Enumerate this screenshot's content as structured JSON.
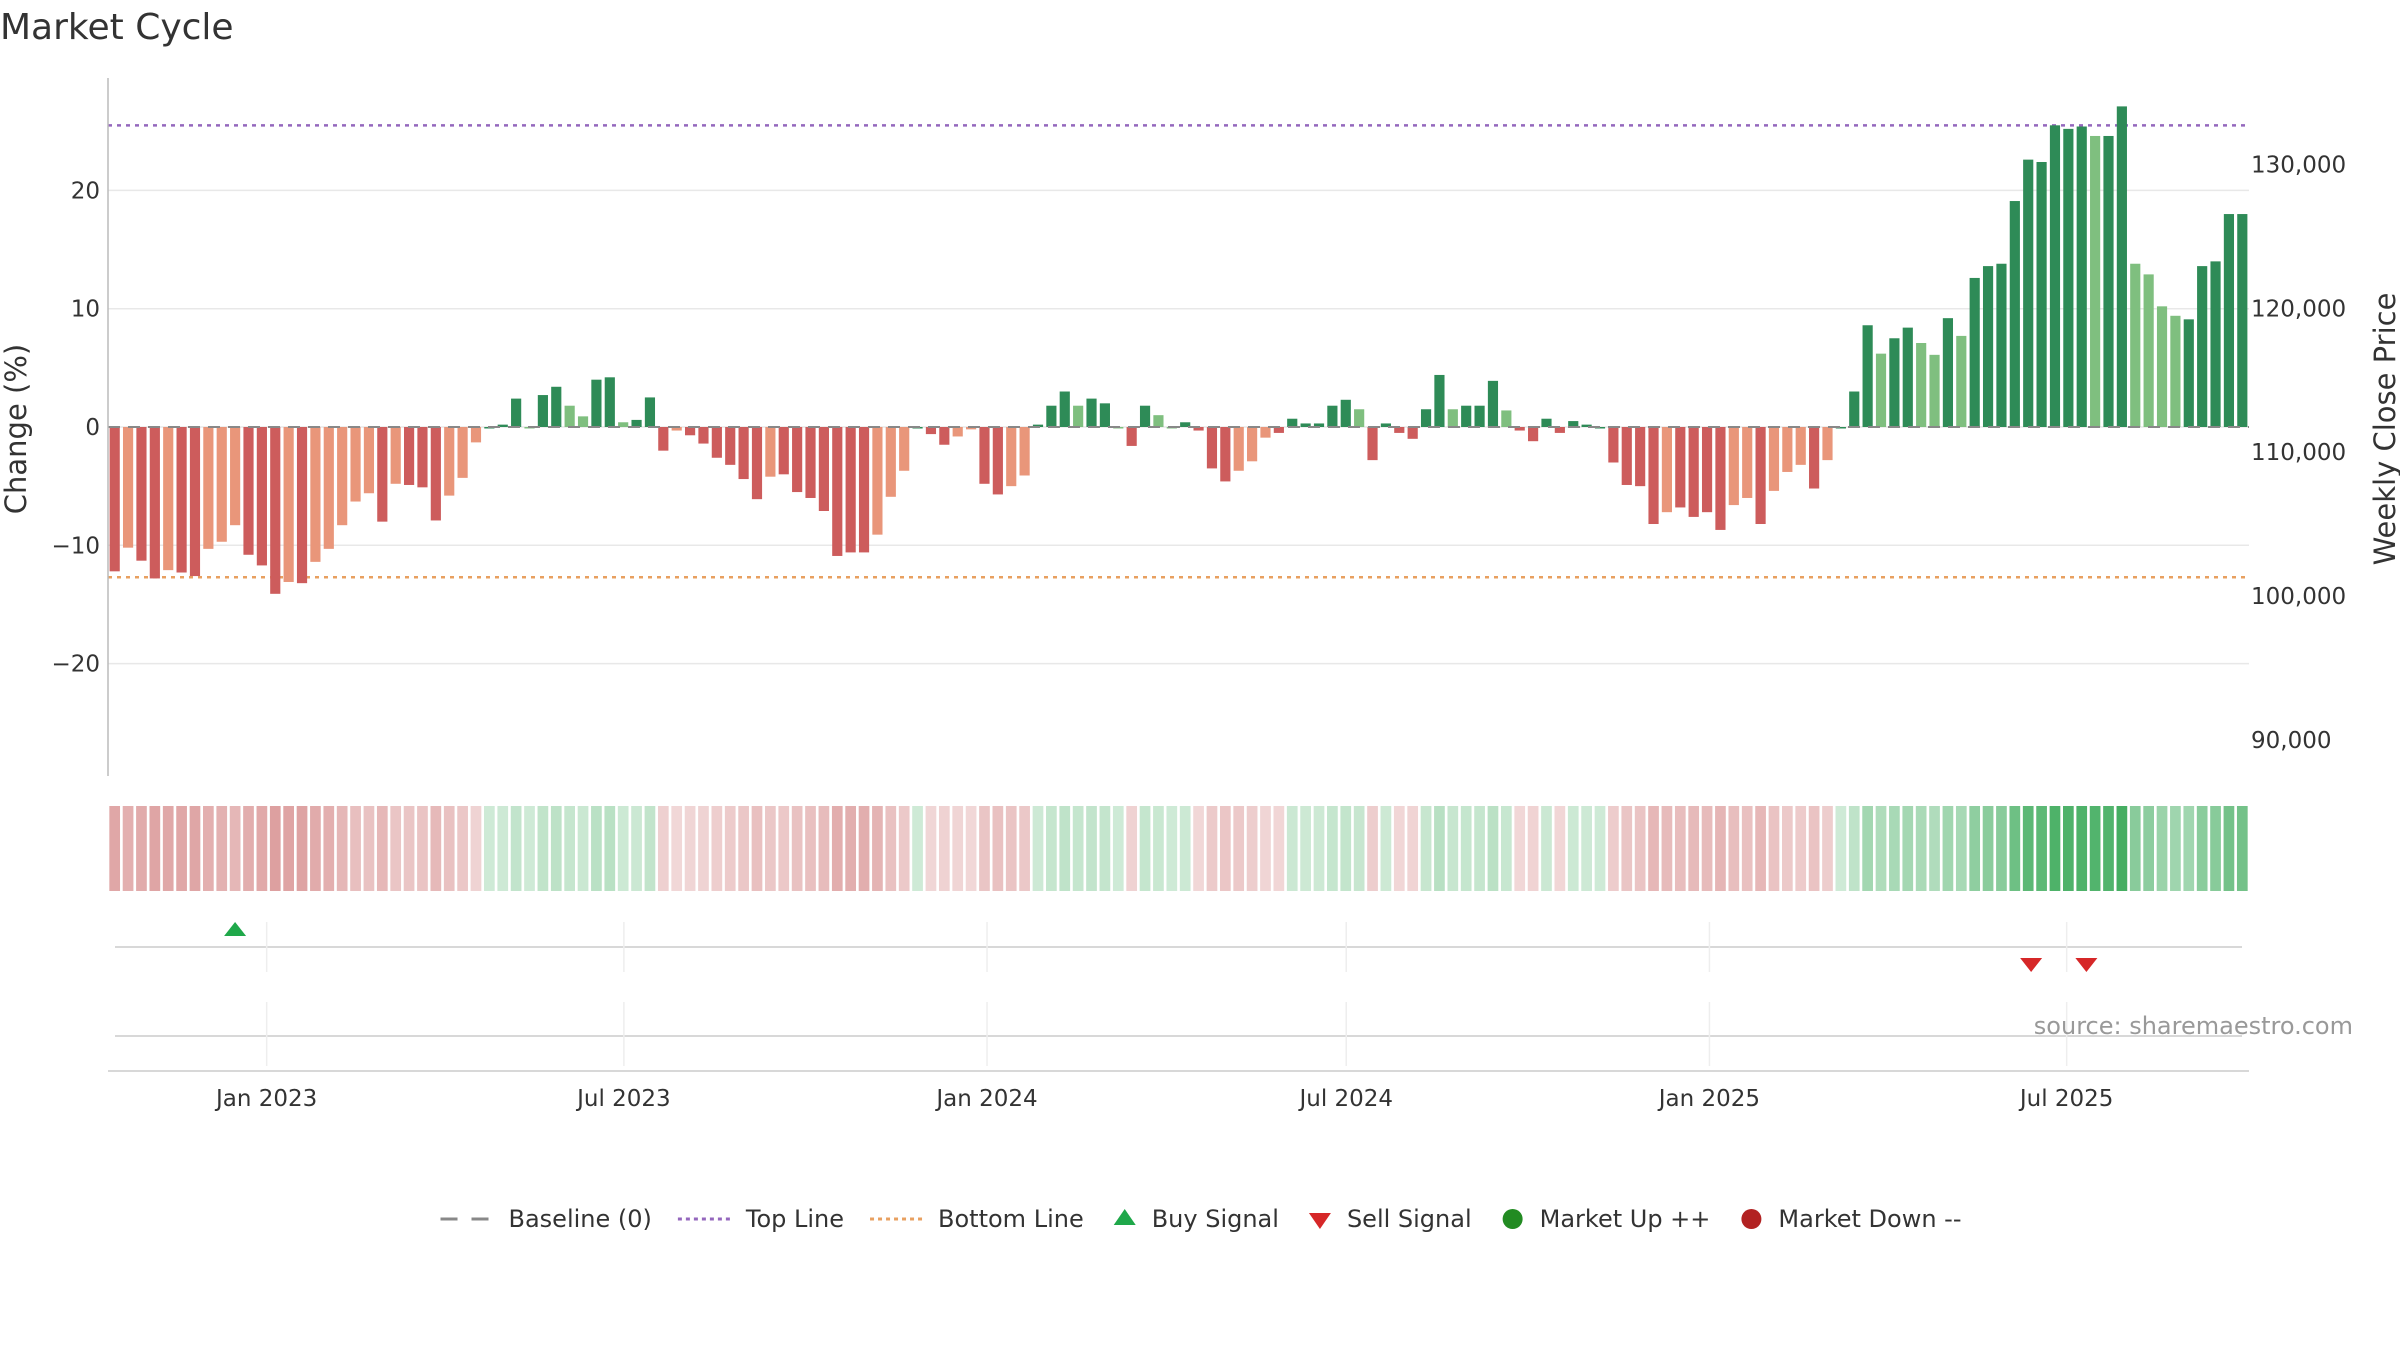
{
  "chart_data": {
    "type": "bar",
    "title": "Market Cycle",
    "ylabel": "Change (%)",
    "y2label": "Weekly Close Price",
    "ylim": [
      -29.5,
      29.5
    ],
    "y_ticks": [
      -20,
      -10,
      0,
      10,
      20
    ],
    "y2_ticks": [
      90000,
      100000,
      110000,
      120000,
      130000
    ],
    "y2_tick_labels": [
      "90,000",
      "100,000",
      "110,000",
      "120,000",
      "130,000"
    ],
    "y2lim": [
      87500,
      136000
    ],
    "top_line": 25.5,
    "bottom_line": -12.7,
    "x_ticks": [
      {
        "label": "Jan 2023",
        "date": "2023-01-01"
      },
      {
        "label": "Jul 2023",
        "date": "2023-07-01"
      },
      {
        "label": "Jan 2024",
        "date": "2024-01-01"
      },
      {
        "label": "Jul 2024",
        "date": "2024-07-01"
      },
      {
        "label": "Jan 2025",
        "date": "2025-01-01"
      },
      {
        "label": "Jul 2025",
        "date": "2025-07-01"
      }
    ],
    "start_date": "2022-10-16",
    "end_date": "2025-09-28",
    "values": [
      -12.2,
      -10.2,
      -11.3,
      -12.8,
      -12.1,
      -12.3,
      -12.6,
      -10.3,
      -9.7,
      -8.3,
      -10.8,
      -11.7,
      -14.1,
      -13.1,
      -13.2,
      -11.4,
      -10.3,
      -8.3,
      -6.3,
      -5.6,
      -8.0,
      -4.8,
      -4.9,
      -5.1,
      -7.9,
      -5.8,
      -4.3,
      -1.3,
      0.0,
      0.2,
      2.4,
      0.0,
      2.7,
      3.4,
      1.8,
      0.9,
      4.0,
      4.2,
      0.4,
      0.6,
      2.5,
      -2.0,
      -0.3,
      -0.7,
      -1.4,
      -2.6,
      -3.2,
      -4.4,
      -6.1,
      -4.2,
      -4.0,
      -5.5,
      -6.0,
      -7.1,
      -10.9,
      -10.6,
      -10.6,
      -9.1,
      -5.9,
      -3.7,
      0.0,
      -0.6,
      -1.5,
      -0.8,
      -0.2,
      -4.8,
      -5.7,
      -5.0,
      -4.1,
      0.2,
      1.8,
      3.0,
      1.8,
      2.4,
      2.0,
      0.0,
      -1.6,
      1.8,
      1.0,
      0.0,
      0.4,
      -0.3,
      -3.5,
      -4.6,
      -3.7,
      -2.9,
      -0.9,
      -0.5,
      0.7,
      0.3,
      0.3,
      1.8,
      2.3,
      1.5,
      -2.8,
      0.3,
      -0.5,
      -1.0,
      1.5,
      4.4,
      1.5,
      1.8,
      1.8,
      3.9,
      1.4,
      -0.3,
      -1.2,
      0.7,
      -0.5,
      0.5,
      0.2,
      0.0,
      -3.0,
      -4.9,
      -5.0,
      -8.2,
      -7.2,
      -6.8,
      -7.6,
      -7.2,
      -8.7,
      -6.6,
      -6.0,
      -8.2,
      -5.4,
      -3.8,
      -3.2,
      -5.2,
      -2.8,
      0.0,
      3.0,
      8.6,
      6.2,
      7.5,
      8.4,
      7.1,
      6.1,
      9.2,
      7.7,
      12.6,
      13.6,
      13.8,
      19.1,
      22.6,
      22.4,
      25.5,
      25.2,
      25.4,
      24.6,
      24.6,
      27.1,
      13.8,
      12.9,
      10.2,
      9.4,
      9.1,
      13.6,
      14.0,
      18.0,
      18.0
    ],
    "signals": {
      "buy": [
        "2022-12-16"
      ],
      "sell": [
        "2025-06-13",
        "2025-07-11"
      ]
    },
    "legend": [
      {
        "label": "Baseline (0)",
        "symbol": "dash",
        "color": "#888888"
      },
      {
        "label": "Top Line",
        "symbol": "dot-line",
        "color": "#9467bd"
      },
      {
        "label": "Bottom Line",
        "symbol": "dot-line",
        "color": "#e8a060"
      },
      {
        "label": "Buy Signal",
        "symbol": "triangle-up",
        "color": "#1fa84a"
      },
      {
        "label": "Sell Signal",
        "symbol": "triangle-down",
        "color": "#d62728"
      },
      {
        "label": "Market Up ++",
        "symbol": "circle",
        "color": "#228b22"
      },
      {
        "label": "Market Down --",
        "symbol": "circle",
        "color": "#b22222"
      }
    ],
    "source": "source: sharemaestro.com",
    "colors": {
      "strong_up": "#2e8b57",
      "weak_up": "#7fbf7f",
      "strong_down": "#cd5c5c",
      "weak_down": "#e9967a",
      "top_line": "#9467bd",
      "bottom_line": "#e8a060",
      "baseline": "#888888"
    }
  }
}
